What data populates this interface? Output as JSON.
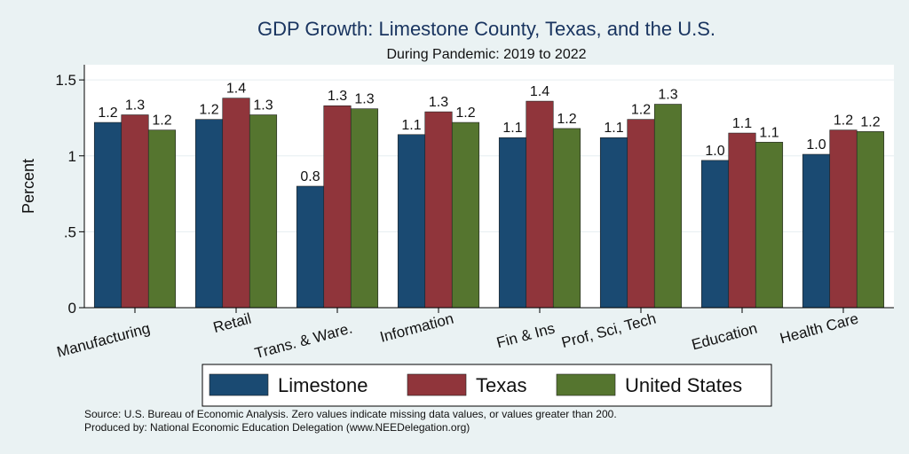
{
  "chart_data": {
    "type": "bar",
    "title": "GDP Growth: Limestone County, Texas, and the U.S.",
    "subtitle": "During Pandemic: 2019 to 2022",
    "ylabel": "Percent",
    "xlabel": "",
    "ylim": [
      0,
      1.6
    ],
    "yticks": [
      0,
      0.5,
      1,
      1.5
    ],
    "ytick_labels": [
      "0",
      ".5",
      "1",
      "1.5"
    ],
    "grid": true,
    "legend_position": "bottom",
    "categories": [
      "Manufacturing",
      "Retail",
      "Trans. & Ware.",
      "Information",
      "Fin & Ins",
      "Prof, Sci, Tech",
      "Education",
      "Health Care"
    ],
    "series": [
      {
        "name": "Limestone",
        "color": "#1a4a72",
        "values": [
          1.22,
          1.24,
          0.8,
          1.14,
          1.12,
          1.12,
          0.97,
          1.01
        ],
        "labels": [
          "1.2",
          "1.2",
          "0.8",
          "1.1",
          "1.1",
          "1.1",
          "1.0",
          "1.0"
        ]
      },
      {
        "name": "Texas",
        "color": "#90353b",
        "values": [
          1.27,
          1.38,
          1.33,
          1.29,
          1.36,
          1.24,
          1.15,
          1.17
        ],
        "labels": [
          "1.3",
          "1.4",
          "1.3",
          "1.3",
          "1.4",
          "1.2",
          "1.1",
          "1.2"
        ]
      },
      {
        "name": "United States",
        "color": "#55752f",
        "values": [
          1.17,
          1.27,
          1.31,
          1.22,
          1.18,
          1.34,
          1.09,
          1.16
        ],
        "labels": [
          "1.2",
          "1.3",
          "1.3",
          "1.2",
          "1.2",
          "1.3",
          "1.1",
          "1.2"
        ]
      }
    ],
    "notes": [
      "Source: U.S. Bureau of Economic Analysis. Zero values indicate missing data values, or values greater than 200.",
      "Produced by: National Economic Education Delegation (www.NEEDelegation.org)"
    ]
  }
}
